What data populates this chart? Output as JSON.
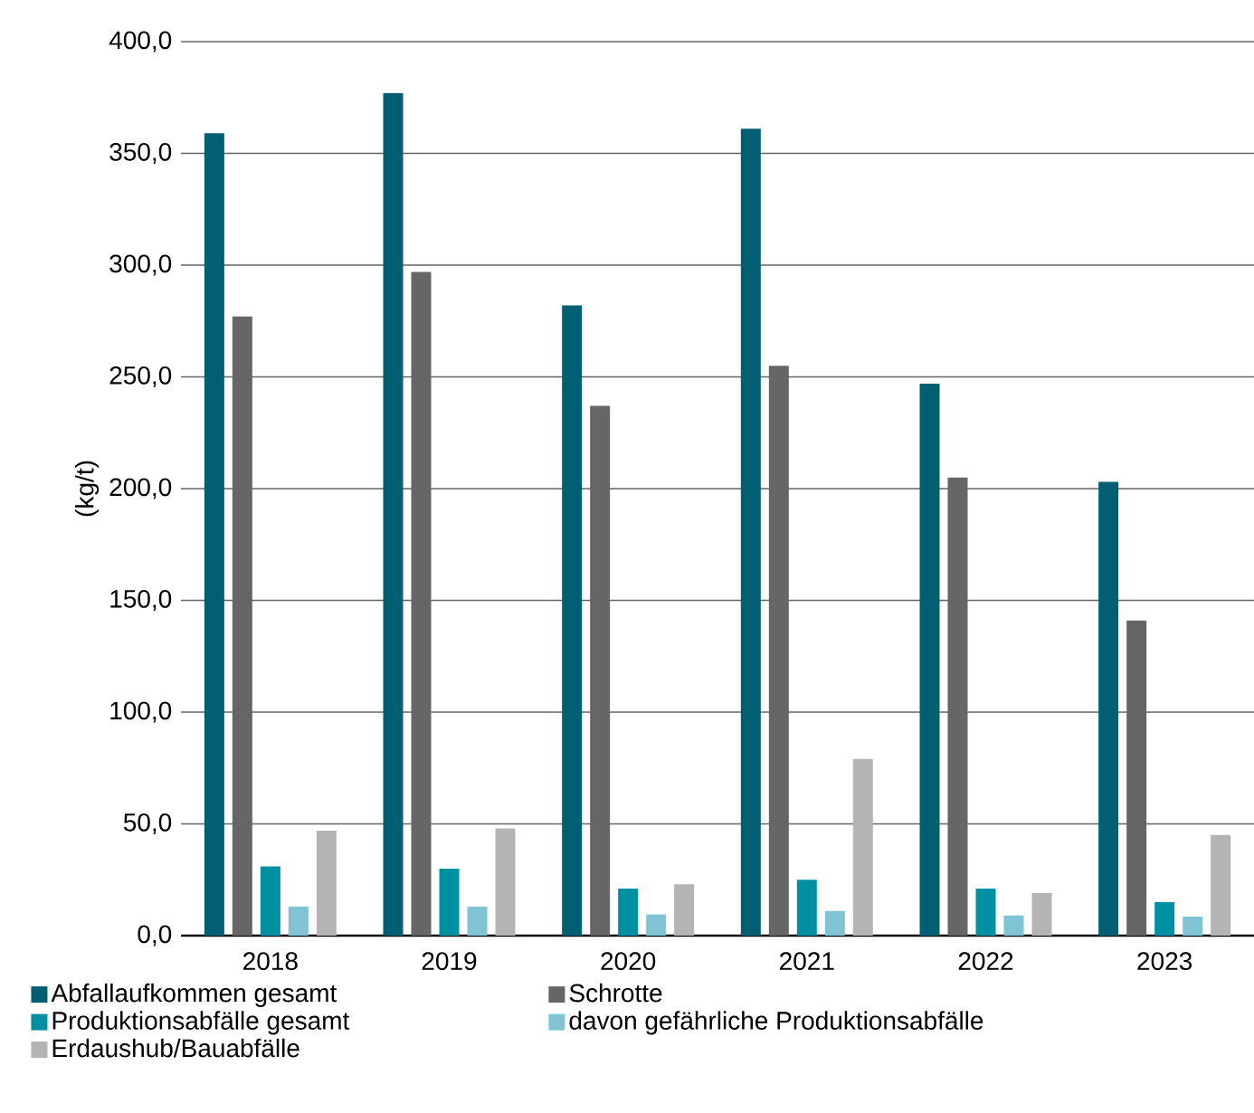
{
  "chart_data": {
    "type": "bar",
    "ylabel": "(kg/t)",
    "categories": [
      "2018",
      "2019",
      "2020",
      "2021",
      "2022",
      "2023"
    ],
    "series": [
      {
        "name": "Abfallaufkommen gesamt",
        "color": "#005f73",
        "values": [
          359,
          377,
          282,
          361,
          247,
          203
        ]
      },
      {
        "name": "Schrotte",
        "color": "#666666",
        "values": [
          277,
          297,
          237,
          255,
          205,
          141
        ]
      },
      {
        "name": "Produktionsabfälle gesamt",
        "color": "#0090a3",
        "values": [
          31,
          30,
          21,
          25,
          21,
          15
        ]
      },
      {
        "name": "davon gefährliche Produktionsabfälle",
        "color": "#80c3d4",
        "values": [
          13,
          13,
          9.5,
          11,
          9,
          8.5
        ]
      },
      {
        "name": "Erdaushub/Bauabfälle",
        "color": "#b4b4b4",
        "values": [
          47,
          48,
          23,
          79,
          19,
          45
        ]
      }
    ],
    "ylim": [
      0,
      400
    ],
    "yticks": [
      {
        "value": 0,
        "label": "0,0"
      },
      {
        "value": 50,
        "label": "50,0"
      },
      {
        "value": 100,
        "label": "100,0"
      },
      {
        "value": 150,
        "label": "150,0"
      },
      {
        "value": 200,
        "label": "200,0"
      },
      {
        "value": 250,
        "label": "250,0"
      },
      {
        "value": 300,
        "label": "300,0"
      },
      {
        "value": 350,
        "label": "350,0"
      },
      {
        "value": 400,
        "label": "400,0"
      }
    ],
    "grid": "y",
    "legend": "bottom"
  }
}
